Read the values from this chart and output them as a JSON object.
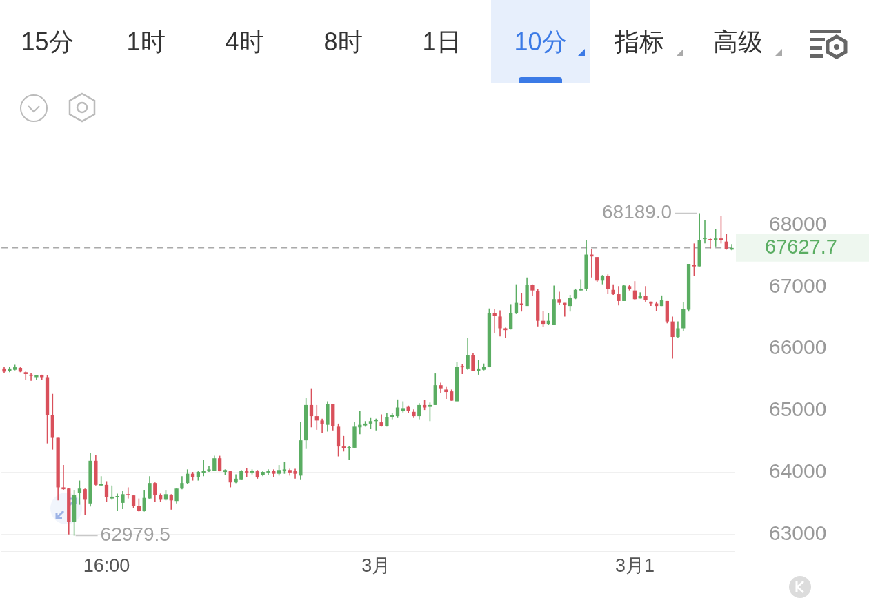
{
  "chart_data": {
    "type": "candlestick",
    "categories": [
      null,
      null,
      null,
      null,
      null,
      null,
      null,
      null,
      null,
      null,
      null,
      null,
      null,
      null,
      null,
      null,
      null,
      null,
      null,
      "16:00",
      null,
      null,
      null,
      null,
      null,
      null,
      null,
      null,
      null,
      null,
      null,
      null,
      null,
      null,
      null,
      null,
      null,
      null,
      null,
      null,
      null,
      null,
      null,
      null,
      null,
      null,
      null,
      null,
      null,
      null,
      null,
      null,
      null,
      null,
      null,
      null,
      null,
      null,
      null,
      null,
      null,
      null,
      null,
      null,
      null,
      null,
      null,
      null,
      null,
      "3月",
      null,
      null,
      null,
      null,
      null,
      null,
      null,
      null,
      null,
      null,
      null,
      null,
      null,
      null,
      null,
      null,
      null,
      null,
      null,
      null,
      null,
      null,
      null,
      null,
      null,
      null,
      null,
      null,
      null,
      null,
      null,
      null,
      null,
      null,
      null,
      null,
      null,
      null,
      null,
      null,
      null,
      null,
      null,
      null,
      null,
      null,
      null,
      "3月1",
      null,
      null,
      null,
      null,
      null,
      null,
      null,
      null,
      null,
      null,
      null,
      null,
      null,
      null,
      null,
      null,
      null,
      null
    ],
    "ohlc": [
      [
        65680,
        65700,
        65600,
        65630
      ],
      [
        65640,
        65700,
        65620,
        65680
      ],
      [
        65660,
        65740,
        65650,
        65700
      ],
      [
        65690,
        65700,
        65620,
        65630
      ],
      [
        65620,
        65630,
        65490,
        65590
      ],
      [
        65580,
        65600,
        65480,
        65560
      ],
      [
        65540,
        65580,
        65490,
        65570
      ],
      [
        65570,
        65580,
        65500,
        65540
      ],
      [
        65540,
        65570,
        64470,
        64930
      ],
      [
        64930,
        65270,
        64370,
        64560
      ],
      [
        64560,
        64560,
        63550,
        63760
      ],
      [
        63760,
        64120,
        63720,
        63730
      ],
      [
        63740,
        63750,
        63000,
        63200
      ],
      [
        63200,
        63720,
        62979.5,
        63640
      ],
      [
        63670,
        63870,
        63480,
        63740
      ],
      [
        63730,
        63740,
        63310,
        63560
      ],
      [
        63500,
        64320,
        63450,
        64190
      ],
      [
        64190,
        64280,
        63790,
        63800
      ],
      [
        63790,
        63940,
        63780,
        63810
      ],
      [
        63800,
        63860,
        63530,
        63600
      ],
      [
        63580,
        63790,
        63560,
        63610
      ],
      [
        63600,
        63660,
        63380,
        63620
      ],
      [
        63510,
        63700,
        63410,
        63650
      ],
      [
        63650,
        63760,
        63580,
        63640
      ],
      [
        63630,
        63640,
        63420,
        63460
      ],
      [
        63460,
        63580,
        63370,
        63380
      ],
      [
        63380,
        63720,
        63370,
        63590
      ],
      [
        63580,
        63940,
        63570,
        63830
      ],
      [
        63830,
        63840,
        63530,
        63640
      ],
      [
        63640,
        63660,
        63530,
        63560
      ],
      [
        63560,
        63720,
        63550,
        63650
      ],
      [
        63640,
        63650,
        63400,
        63550
      ],
      [
        63540,
        63750,
        63500,
        63740
      ],
      [
        63740,
        63940,
        63730,
        63830
      ],
      [
        63830,
        64050,
        63820,
        63980
      ],
      [
        63980,
        64010,
        63870,
        63930
      ],
      [
        63930,
        64020,
        63870,
        64010
      ],
      [
        63990,
        64200,
        63940,
        64030
      ],
      [
        64020,
        64100,
        64010,
        64050
      ],
      [
        64030,
        64270,
        64030,
        64230
      ],
      [
        64230,
        64270,
        64020,
        64020
      ],
      [
        64010,
        64050,
        63960,
        64040
      ],
      [
        64020,
        64020,
        63760,
        63840
      ],
      [
        63840,
        63970,
        63830,
        63900
      ],
      [
        63890,
        64040,
        63880,
        64030
      ],
      [
        64020,
        64070,
        63930,
        64000
      ],
      [
        64000,
        64050,
        63970,
        64030
      ],
      [
        64020,
        64040,
        63900,
        63920
      ],
      [
        63960,
        64030,
        63940,
        64010
      ],
      [
        64000,
        64050,
        63960,
        64020
      ],
      [
        64030,
        64050,
        63930,
        63980
      ],
      [
        63980,
        64120,
        63950,
        64040
      ],
      [
        64020,
        64170,
        63980,
        64050
      ],
      [
        64040,
        64060,
        63950,
        64000
      ],
      [
        64020,
        64060,
        63900,
        63980
      ],
      [
        63950,
        64810,
        63890,
        64520
      ],
      [
        64520,
        65200,
        64380,
        65090
      ],
      [
        65090,
        65360,
        64730,
        64910
      ],
      [
        64910,
        65090,
        64690,
        64840
      ],
      [
        64840,
        64870,
        64640,
        64780
      ],
      [
        64770,
        65150,
        64660,
        65110
      ],
      [
        65110,
        65110,
        64680,
        64750
      ],
      [
        64740,
        64790,
        64260,
        64420
      ],
      [
        64420,
        64590,
        64340,
        64390
      ],
      [
        64390,
        64420,
        64200,
        64410
      ],
      [
        64400,
        64820,
        64390,
        64740
      ],
      [
        64730,
        65000,
        64620,
        64770
      ],
      [
        64760,
        64830,
        64740,
        64790
      ],
      [
        64790,
        64880,
        64710,
        64830
      ],
      [
        64830,
        64870,
        64680,
        64850
      ],
      [
        64810,
        64940,
        64740,
        64750
      ],
      [
        64750,
        64960,
        64740,
        64900
      ],
      [
        64900,
        64960,
        64860,
        64930
      ],
      [
        64910,
        65180,
        64880,
        65050
      ],
      [
        65000,
        65150,
        64970,
        65040
      ],
      [
        65060,
        65080,
        64960,
        64990
      ],
      [
        64980,
        65020,
        64880,
        64910
      ],
      [
        64910,
        65120,
        64860,
        65090
      ],
      [
        65090,
        65170,
        65010,
        65050
      ],
      [
        65060,
        65130,
        64830,
        65090
      ],
      [
        65090,
        65600,
        65090,
        65410
      ],
      [
        65410,
        65450,
        65280,
        65360
      ],
      [
        65340,
        65380,
        65190,
        65300
      ],
      [
        65310,
        65340,
        65160,
        65160
      ],
      [
        65150,
        65790,
        65150,
        65710
      ],
      [
        65720,
        65750,
        65590,
        65700
      ],
      [
        65680,
        66180,
        65660,
        65890
      ],
      [
        65890,
        65930,
        65640,
        65640
      ],
      [
        65640,
        65820,
        65580,
        65680
      ],
      [
        65660,
        65760,
        65650,
        65710
      ],
      [
        65710,
        66650,
        65700,
        66580
      ],
      [
        66580,
        66640,
        66250,
        66530
      ],
      [
        66520,
        66620,
        66200,
        66330
      ],
      [
        66330,
        66340,
        66180,
        66300
      ],
      [
        66320,
        66720,
        66310,
        66580
      ],
      [
        66570,
        67040,
        66560,
        66740
      ],
      [
        66730,
        66900,
        66600,
        66710
      ],
      [
        66690,
        67150,
        66690,
        67030
      ],
      [
        67030,
        67040,
        66850,
        66940
      ],
      [
        66930,
        66960,
        66360,
        66450
      ],
      [
        66450,
        66610,
        66350,
        66390
      ],
      [
        66390,
        66570,
        66380,
        66450
      ],
      [
        66380,
        67020,
        66380,
        66800
      ],
      [
        66800,
        66920,
        66710,
        66740
      ],
      [
        66740,
        66740,
        66520,
        66710
      ],
      [
        66690,
        66870,
        66600,
        66820
      ],
      [
        66810,
        66970,
        66800,
        66950
      ],
      [
        66940,
        67120,
        66940,
        66970
      ],
      [
        66970,
        67750,
        66930,
        67520
      ],
      [
        67520,
        67610,
        67150,
        67490
      ],
      [
        67480,
        67480,
        67080,
        67100
      ],
      [
        67100,
        67190,
        67040,
        67170
      ],
      [
        67170,
        67200,
        66880,
        66960
      ],
      [
        66950,
        67040,
        66870,
        66880
      ],
      [
        66880,
        67010,
        66700,
        66770
      ],
      [
        66770,
        67030,
        66770,
        67020
      ],
      [
        67010,
        67030,
        66940,
        66960
      ],
      [
        66940,
        67090,
        66780,
        66800
      ],
      [
        66810,
        66910,
        66810,
        66850
      ],
      [
        66850,
        67010,
        66750,
        66780
      ],
      [
        66760,
        66760,
        66690,
        66730
      ],
      [
        66730,
        66760,
        66610,
        66690
      ],
      [
        66690,
        66860,
        66690,
        66780
      ],
      [
        66770,
        66770,
        66410,
        66440
      ],
      [
        66440,
        66520,
        65840,
        66190
      ],
      [
        66190,
        66440,
        66180,
        66330
      ],
      [
        66330,
        66750,
        66280,
        66640
      ],
      [
        66630,
        67370,
        66600,
        67370
      ],
      [
        67350,
        67700,
        67170,
        67330
      ],
      [
        67330,
        68189.0,
        67330,
        67750
      ],
      [
        67770,
        68080,
        67700,
        67780
      ],
      [
        67770,
        67780,
        67620,
        67760
      ],
      [
        67750,
        67930,
        67650,
        67780
      ],
      [
        67780,
        68150,
        67700,
        67750
      ],
      [
        67730,
        67850,
        67600,
        67610
      ],
      [
        67600,
        67690,
        67590,
        67627.7
      ]
    ],
    "ylim": [
      62730,
      69540
    ],
    "yticks": [
      63000,
      64000,
      65000,
      66000,
      67000,
      68000
    ],
    "grid": "y",
    "ref_lines": [
      {
        "axis": "y",
        "value": 67627.7,
        "label": "67627.7",
        "color": "#aaaaaa",
        "line_style": "dashed"
      }
    ],
    "annotations": [
      "15分",
      "1时",
      "4时",
      "8时",
      "1日",
      "10分",
      "指标",
      "高级",
      "68189.0",
      "62979.5"
    ]
  }
}
